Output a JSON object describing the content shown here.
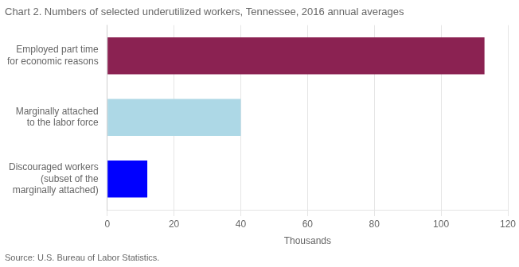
{
  "chart_data": {
    "type": "bar",
    "orientation": "horizontal",
    "title": "Chart 2. Numbers of selected underutilized workers, Tennessee, 2016 annual averages",
    "categories": [
      "Employed part time\nfor economic reasons",
      "Marginally attached\nto the labor force",
      "Discouraged workers\n(subset of the\nmarginally attached)"
    ],
    "values": [
      113,
      40,
      12
    ],
    "colors": [
      "#8B2252",
      "#ADD8E6",
      "#0000FF"
    ],
    "xlabel": "Thousands",
    "xlim": [
      0,
      120
    ],
    "xticks": [
      0,
      20,
      40,
      60,
      80,
      100,
      120
    ],
    "grid": "x",
    "annotations": [
      "Source: U.S. Bureau of Labor Statistics."
    ]
  }
}
